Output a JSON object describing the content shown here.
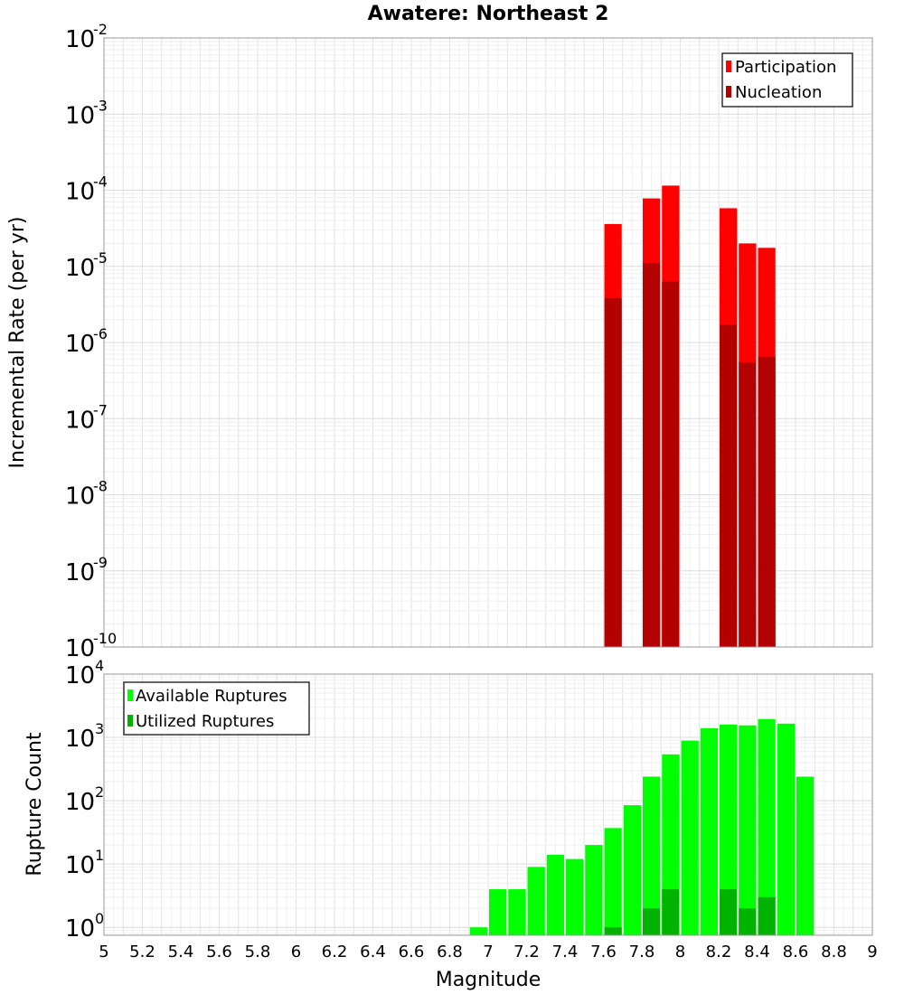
{
  "chart_data": [
    {
      "type": "bar",
      "title": "Awatere: Northeast 2",
      "xlabel": "Magnitude",
      "ylabel": "Incremental Rate (per yr)",
      "yscale": "log",
      "xlim": [
        5,
        9
      ],
      "ylim": [
        1e-10,
        0.01
      ],
      "legend_position": "top-right",
      "grid": true,
      "bar_width": 0.1,
      "x": [
        7.65,
        7.85,
        7.95,
        8.25,
        8.35,
        8.45
      ],
      "series": [
        {
          "name": "Participation",
          "color": "#ff0000",
          "values": [
            3.6e-05,
            7.8e-05,
            0.000115,
            5.8e-05,
            2e-05,
            1.75e-05
          ]
        },
        {
          "name": "Nucleation",
          "color": "#b30000",
          "values": [
            3.8e-06,
            1.1e-05,
            6.3e-06,
            1.7e-06,
            5.5e-07,
            6.5e-07
          ]
        }
      ]
    },
    {
      "type": "bar",
      "xlabel": "Magnitude",
      "ylabel": "Rupture Count",
      "yscale": "log",
      "xlim": [
        5,
        9
      ],
      "ylim": [
        0.75,
        10000
      ],
      "legend_position": "top-left",
      "grid": true,
      "bar_width": 0.1,
      "x": [
        6.95,
        7.05,
        7.15,
        7.25,
        7.35,
        7.45,
        7.55,
        7.65,
        7.75,
        7.85,
        7.95,
        8.05,
        8.15,
        8.25,
        8.35,
        8.45,
        8.55,
        8.65
      ],
      "series": [
        {
          "name": "Available Ruptures",
          "color": "#00ff00",
          "values": [
            1,
            4,
            4,
            9,
            14,
            12,
            20,
            37,
            85,
            240,
            540,
            890,
            1400,
            1600,
            1550,
            1950,
            1650,
            240
          ]
        },
        {
          "name": "Utilized Ruptures",
          "color": "#00b300",
          "values": [
            null,
            null,
            null,
            null,
            null,
            null,
            null,
            1,
            null,
            2,
            4,
            null,
            null,
            4,
            2,
            3,
            null,
            null
          ]
        }
      ]
    }
  ],
  "x_ticks": [
    "5",
    "5.2",
    "5.4",
    "5.6",
    "5.8",
    "6",
    "6.2",
    "6.4",
    "6.6",
    "6.8",
    "7",
    "7.2",
    "7.4",
    "7.6",
    "7.8",
    "8",
    "8.2",
    "8.4",
    "8.6",
    "8.8",
    "9"
  ],
  "top_y_ticks": [
    {
      "base": "10",
      "exp": "-2"
    },
    {
      "base": "10",
      "exp": "-3"
    },
    {
      "base": "10",
      "exp": "-4"
    },
    {
      "base": "10",
      "exp": "-5"
    },
    {
      "base": "10",
      "exp": "-6"
    },
    {
      "base": "10",
      "exp": "-7"
    },
    {
      "base": "10",
      "exp": "-8"
    },
    {
      "base": "10",
      "exp": "-9"
    },
    {
      "base": "10",
      "exp": "-10"
    }
  ],
  "bottom_y_ticks": [
    {
      "base": "10",
      "exp": "4"
    },
    {
      "base": "10",
      "exp": "3"
    },
    {
      "base": "10",
      "exp": "2"
    },
    {
      "base": "10",
      "exp": "1"
    },
    {
      "base": "10",
      "exp": "0"
    }
  ]
}
